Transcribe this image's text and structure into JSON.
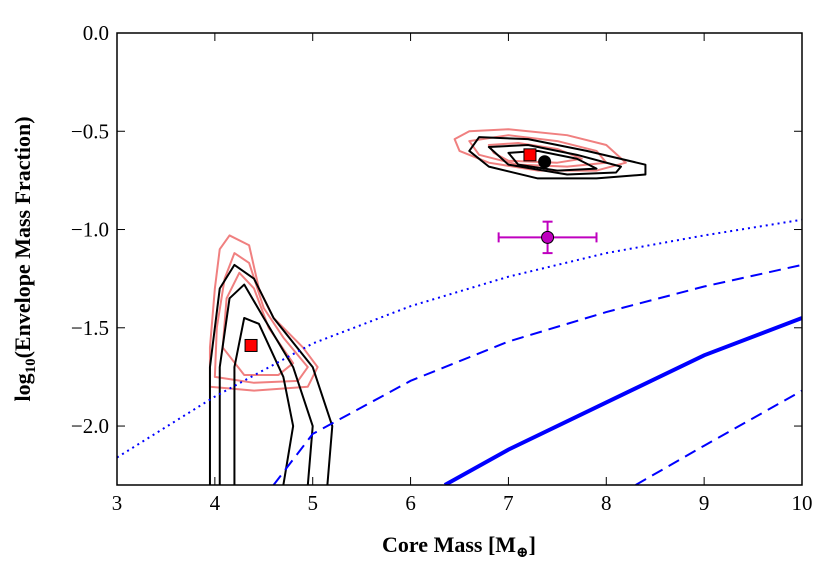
{
  "chart_data": {
    "type": "line",
    "xlabel": {
      "pre": "Core Mass [M",
      "sub": "⊕",
      "post": "]"
    },
    "ylabel": {
      "pre": "log",
      "sub": "10",
      "post": "(Envelope Mass Fraction)"
    },
    "xlim": [
      3,
      10
    ],
    "ylim": [
      -2.3,
      0
    ],
    "xticks": [
      3,
      4,
      5,
      6,
      7,
      8,
      9,
      10
    ],
    "yticks": [
      {
        "value": 0,
        "label": "0.0"
      },
      {
        "value": -0.5,
        "label": "−0.5"
      },
      {
        "value": -1.0,
        "label": "−1.0"
      },
      {
        "value": -1.5,
        "label": "−1.5"
      },
      {
        "value": -2.0,
        "label": "−2.0"
      }
    ],
    "curves": [
      {
        "style": "dotted",
        "color": "#0000ff",
        "x": [
          3,
          4,
          5,
          6,
          7,
          8,
          9,
          10
        ],
        "y": [
          -2.16,
          -1.85,
          -1.58,
          -1.39,
          -1.24,
          -1.12,
          -1.03,
          -0.95
        ]
      },
      {
        "style": "dashed",
        "color": "#0000ff",
        "x": [
          4.6,
          5,
          6,
          7,
          8,
          9,
          10
        ],
        "y": [
          -2.3,
          -2.04,
          -1.77,
          -1.57,
          -1.42,
          -1.29,
          -1.18
        ]
      },
      {
        "style": "solid",
        "color": "#0000ff",
        "x": [
          6.35,
          7,
          8,
          9,
          10
        ],
        "y": [
          -2.3,
          -2.12,
          -1.88,
          -1.64,
          -1.45
        ]
      },
      {
        "style": "dashed",
        "color": "#0000ff",
        "x": [
          8.3,
          9,
          10
        ],
        "y": [
          -2.3,
          -2.1,
          -1.82
        ]
      }
    ],
    "contours": [
      {
        "color": "#f08080",
        "closed": true,
        "x": [
          6.45,
          6.6,
          7.0,
          7.6,
          8.0,
          8.2,
          7.9,
          7.3,
          6.8,
          6.5
        ],
        "y": [
          -0.54,
          -0.5,
          -0.49,
          -0.52,
          -0.57,
          -0.66,
          -0.7,
          -0.7,
          -0.66,
          -0.6
        ]
      },
      {
        "color": "#f08080",
        "closed": true,
        "x": [
          6.6,
          7.0,
          7.5,
          7.9,
          8.0,
          7.6,
          7.1,
          6.7
        ],
        "y": [
          -0.55,
          -0.52,
          -0.55,
          -0.6,
          -0.66,
          -0.68,
          -0.67,
          -0.62
        ]
      },
      {
        "color": "#f08080",
        "closed": true,
        "x": [
          6.8,
          7.1,
          7.5,
          7.75,
          7.5,
          7.0,
          6.85
        ],
        "y": [
          -0.57,
          -0.56,
          -0.59,
          -0.64,
          -0.66,
          -0.65,
          -0.61
        ]
      },
      {
        "color": "#000000",
        "closed": true,
        "x": [
          6.6,
          6.7,
          7.2,
          7.8,
          8.4,
          8.4,
          7.9,
          7.3,
          6.8
        ],
        "y": [
          -0.6,
          -0.53,
          -0.54,
          -0.6,
          -0.67,
          -0.72,
          -0.74,
          -0.74,
          -0.68
        ]
      },
      {
        "color": "#000000",
        "closed": true,
        "x": [
          6.8,
          7.2,
          7.7,
          8.15,
          8.1,
          7.6,
          7.0
        ],
        "y": [
          -0.58,
          -0.57,
          -0.62,
          -0.68,
          -0.71,
          -0.72,
          -0.67
        ]
      },
      {
        "color": "#000000",
        "closed": true,
        "x": [
          7.0,
          7.3,
          7.7,
          7.9,
          7.5,
          7.1
        ],
        "y": [
          -0.61,
          -0.6,
          -0.64,
          -0.69,
          -0.7,
          -0.67
        ]
      },
      {
        "color": "#f08080",
        "closed": true,
        "x": [
          4.15,
          4.35,
          4.45,
          4.6,
          4.9,
          5.05,
          4.95,
          4.4,
          3.95,
          3.95,
          4.0,
          4.05
        ],
        "y": [
          -1.03,
          -1.08,
          -1.3,
          -1.45,
          -1.6,
          -1.7,
          -1.8,
          -1.82,
          -1.8,
          -1.6,
          -1.3,
          -1.1
        ]
      },
      {
        "color": "#f08080",
        "closed": true,
        "x": [
          4.2,
          4.35,
          4.5,
          4.7,
          4.95,
          4.85,
          4.4,
          4.0,
          4.02,
          4.1
        ],
        "y": [
          -1.12,
          -1.17,
          -1.4,
          -1.55,
          -1.7,
          -1.77,
          -1.78,
          -1.75,
          -1.5,
          -1.25
        ]
      },
      {
        "color": "#f08080",
        "closed": true,
        "x": [
          4.25,
          4.4,
          4.55,
          4.8,
          4.65,
          4.3,
          4.08,
          4.12
        ],
        "y": [
          -1.22,
          -1.3,
          -1.5,
          -1.68,
          -1.74,
          -1.74,
          -1.6,
          -1.35
        ]
      },
      {
        "color": "#000000",
        "closed": false,
        "x": [
          3.95,
          3.95,
          4.05,
          4.2,
          4.4,
          4.6,
          5.0,
          5.2,
          5.15
        ],
        "y": [
          -2.3,
          -1.7,
          -1.3,
          -1.18,
          -1.25,
          -1.45,
          -1.7,
          -2.0,
          -2.3
        ]
      },
      {
        "color": "#000000",
        "closed": false,
        "x": [
          4.05,
          4.05,
          4.15,
          4.3,
          4.5,
          4.8,
          5.0,
          4.95
        ],
        "y": [
          -2.3,
          -1.7,
          -1.35,
          -1.28,
          -1.45,
          -1.7,
          -2.0,
          -2.3
        ]
      },
      {
        "color": "#000000",
        "closed": false,
        "x": [
          4.2,
          4.2,
          4.3,
          4.45,
          4.7,
          4.8,
          4.7
        ],
        "y": [
          -2.3,
          -1.7,
          -1.45,
          -1.48,
          -1.75,
          -2.0,
          -2.3
        ]
      }
    ],
    "markers": [
      {
        "shape": "square",
        "color": "#ff0000",
        "x": 7.22,
        "y": -0.62
      },
      {
        "shape": "circle",
        "color": "#000000",
        "x": 7.37,
        "y": -0.655
      },
      {
        "shape": "square",
        "color": "#ff0000",
        "x": 4.37,
        "y": -1.59
      }
    ],
    "errorbar": {
      "color": "#bf00bf",
      "x": 7.4,
      "y": -1.04,
      "xerr": 0.5,
      "yerr": 0.08
    }
  }
}
